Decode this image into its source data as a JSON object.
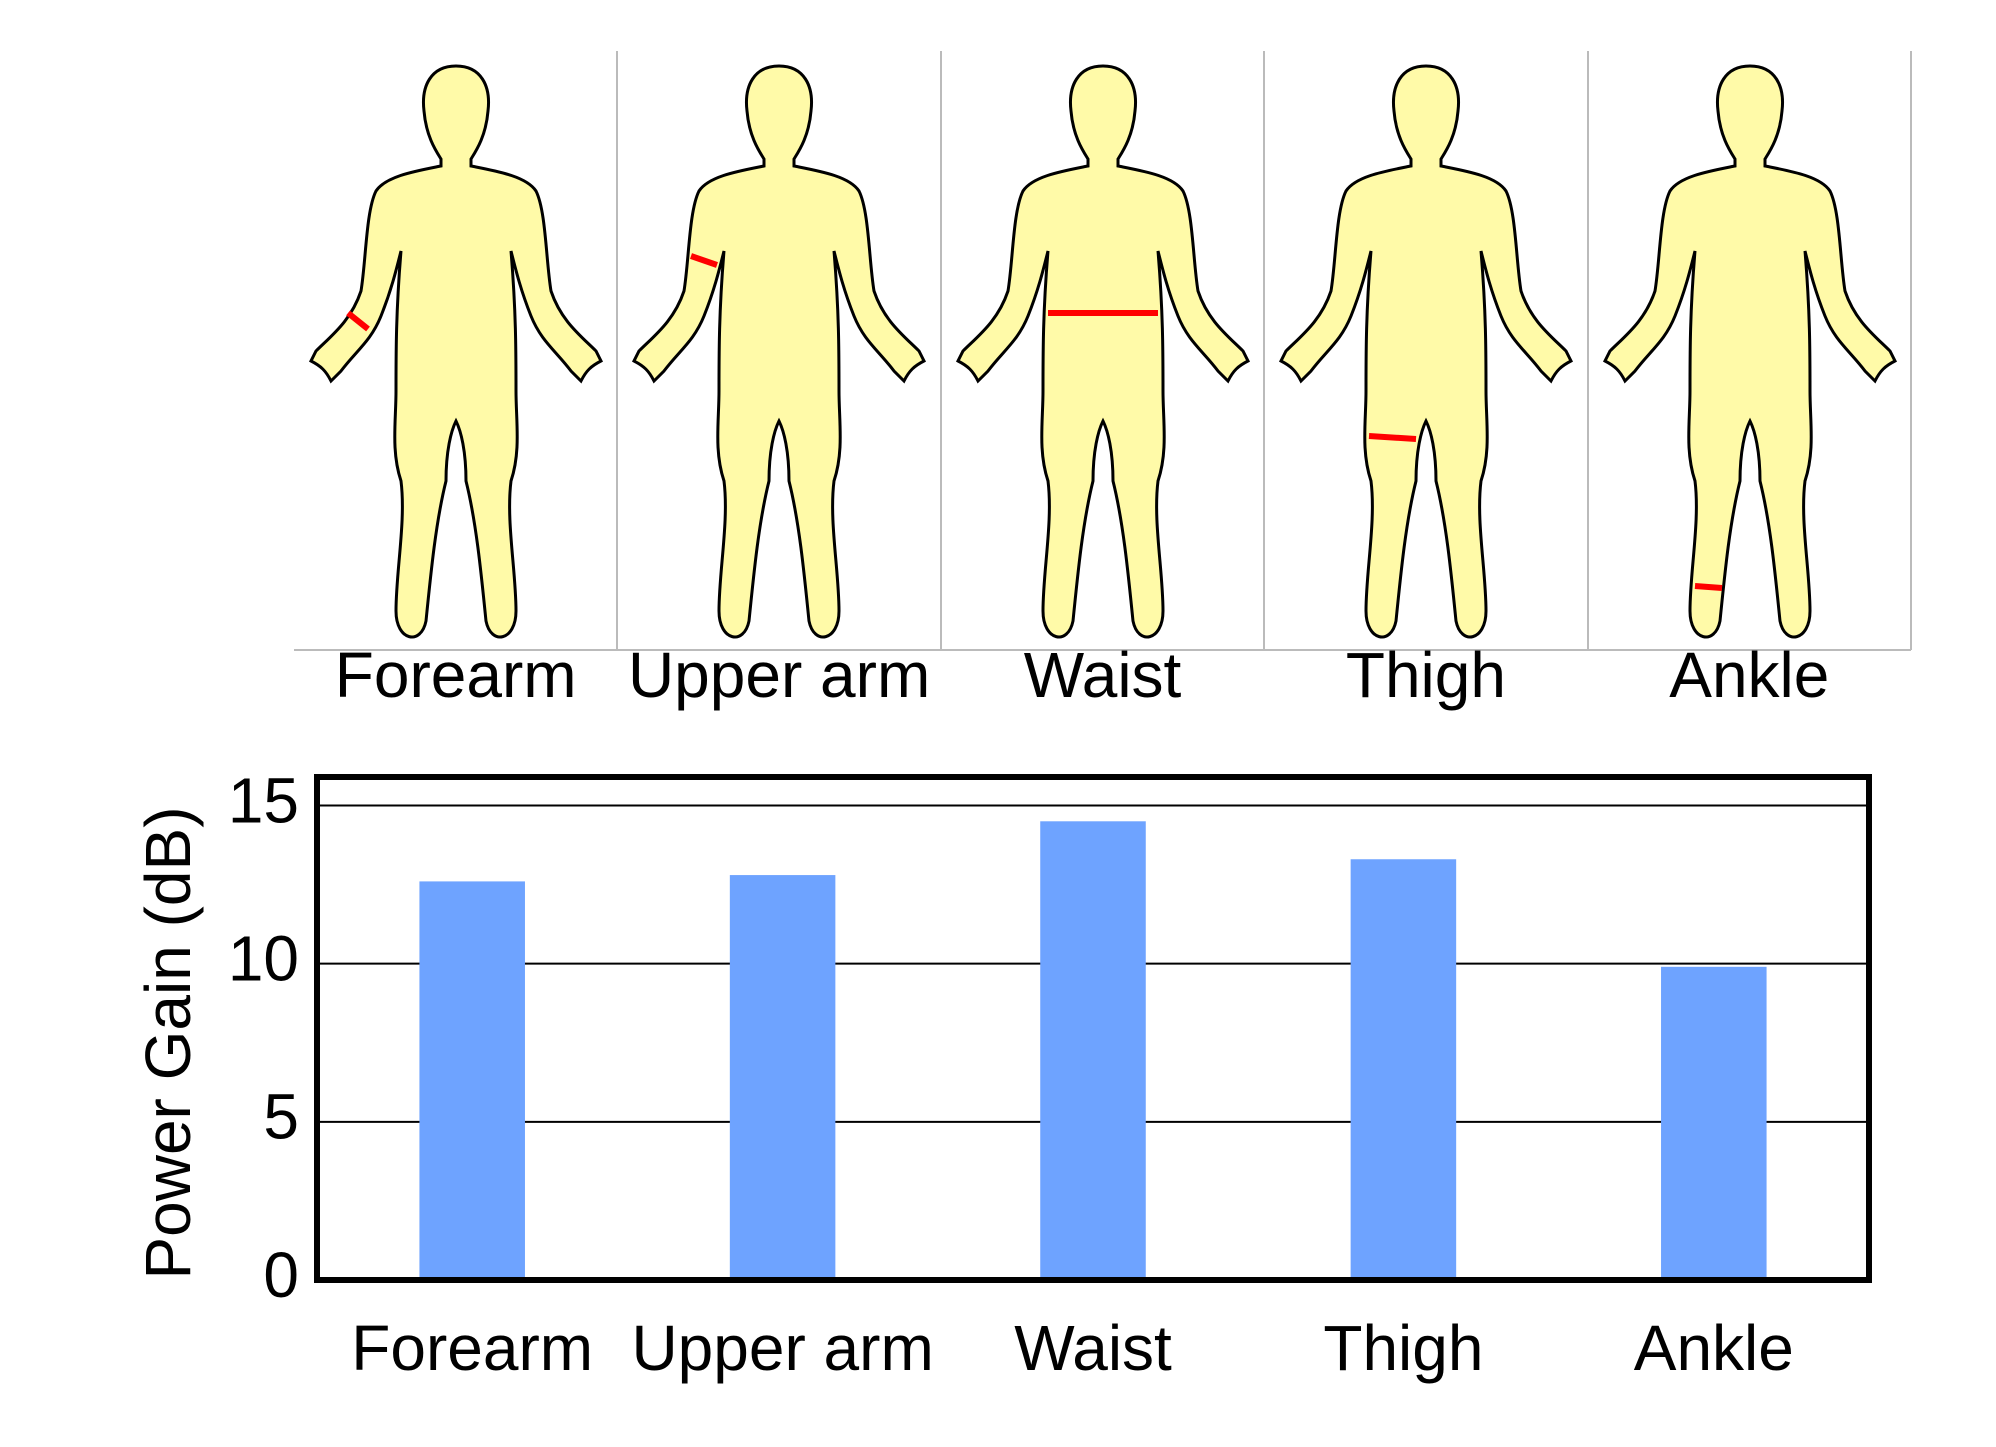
{
  "figure_panel": {
    "labels": [
      "Forearm",
      "Upper arm",
      "Waist",
      "Thigh",
      "Ankle"
    ]
  },
  "chart_data": {
    "type": "bar",
    "y_label": "Power Gain (dB)",
    "categories": [
      "Forearm",
      "Upper arm",
      "Waist",
      "Thigh",
      "Ankle"
    ],
    "values": [
      12.6,
      12.8,
      14.5,
      13.3,
      9.9
    ],
    "color": "#6ea3ff",
    "ylim": [
      0,
      15.9
    ],
    "yticks": [
      0,
      5,
      10,
      15
    ],
    "grid": true
  }
}
